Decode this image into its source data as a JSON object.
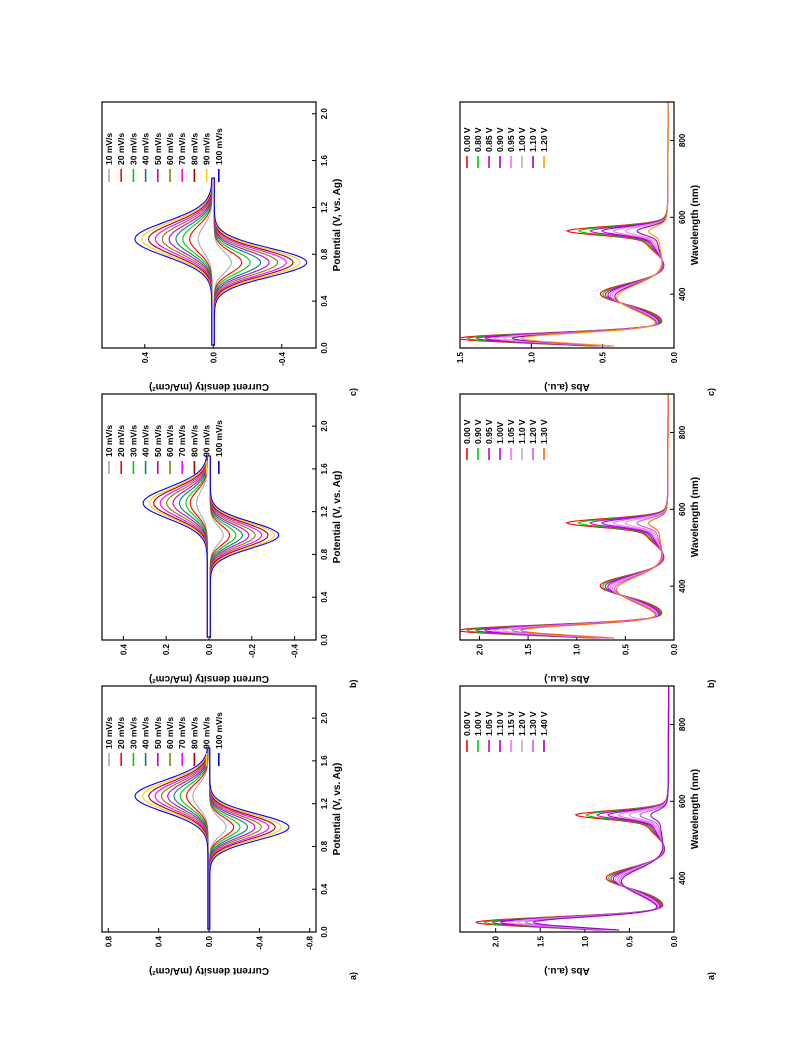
{
  "colors": {
    "palette": [
      "#a9a9a9",
      "#ff0000",
      "#00cc00",
      "#008080",
      "#cc00cc",
      "#808000",
      "#ff00ff",
      "#a00000",
      "#ffcc00",
      "#0000ff"
    ],
    "spectra_a": [
      "#ff0000",
      "#00cc00",
      "#cc00cc",
      "#aa00cc",
      "#ff66ff",
      "#d0a0d0",
      "#cc55ff",
      "#9900cc",
      "#228b22"
    ],
    "spectra_b": [
      "#ff0000",
      "#00cc00",
      "#cc00cc",
      "#aa00ff",
      "#ff66ff",
      "#d0a0d0",
      "#cc55ff",
      "#ff6600"
    ],
    "spectra_c": [
      "#ff0000",
      "#00cc00",
      "#cc00cc",
      "#aa00cc",
      "#ff66ff",
      "#d0a0d0",
      "#9900cc",
      "#ff9900"
    ]
  },
  "chart_data": [
    {
      "panel": "a)",
      "type": "line",
      "xlabel": "Potential (V, vs. Ag)",
      "ylabel": "Current density (mA/cm²)",
      "xlim": [
        0.0,
        2.3
      ],
      "ylim": [
        -0.85,
        0.85
      ],
      "xticks": [
        "0.0",
        "0.4",
        "0.8",
        "1.2",
        "1.6",
        "2.0"
      ],
      "yticks": [
        "0.8",
        "0.4",
        "0.0",
        "-0.4",
        "-0.8"
      ],
      "legend": [
        "10 mV/s",
        "20 mV/s",
        "30 mV/s",
        "40 mV/s",
        "50 mV/s",
        "60 mV/s",
        "70 mV/s",
        "80 mV/s",
        "90 mV/s",
        "100 mV/s"
      ],
      "legend_position": "top-right",
      "anodic_peak_potential": 1.27,
      "cathodic_peak_potential": 0.98,
      "anodic_peaks": [
        0.12,
        0.17,
        0.22,
        0.27,
        0.32,
        0.37,
        0.42,
        0.47,
        0.52,
        0.58
      ],
      "cathodic_peaks": [
        -0.13,
        -0.19,
        -0.24,
        -0.3,
        -0.36,
        -0.41,
        -0.47,
        -0.52,
        -0.57,
        -0.63
      ]
    },
    {
      "panel": "b)",
      "type": "line",
      "xlabel": "Potential (V, vs. Ag)",
      "ylabel": "Current density (mA/cm²)",
      "xlim": [
        0.0,
        2.3
      ],
      "ylim": [
        -0.5,
        0.5
      ],
      "xticks": [
        "0.0",
        "0.4",
        "0.8",
        "1.2",
        "1.6",
        "2.0"
      ],
      "yticks": [
        "0.4",
        "0.2",
        "0.0",
        "-0.2",
        "-0.4"
      ],
      "legend": [
        "10 mV/s",
        "20 mV/s",
        "30 mV/s",
        "40 mV/s",
        "50 mV/s",
        "60 mV/s",
        "70 mV/s",
        "80 mV/s",
        "90 mV/s",
        "100 mV/s"
      ],
      "legend_position": "top-right",
      "anodic_peak_potential": 1.28,
      "cathodic_peak_potential": 0.98,
      "anodic_peaks": [
        0.05,
        0.08,
        0.1,
        0.13,
        0.16,
        0.19,
        0.22,
        0.25,
        0.27,
        0.3
      ],
      "cathodic_peaks": [
        -0.06,
        -0.09,
        -0.12,
        -0.15,
        -0.18,
        -0.21,
        -0.24,
        -0.27,
        -0.3,
        -0.32
      ]
    },
    {
      "panel": "c)",
      "type": "line",
      "xlabel": "Potential (V, vs. Ag)",
      "ylabel": "Current density (mA/cm²)",
      "xlim": [
        0.0,
        2.1
      ],
      "ylim": [
        -0.6,
        0.65
      ],
      "xticks": [
        "0.0",
        "0.4",
        "0.8",
        "1.2",
        "1.6",
        "2.0"
      ],
      "yticks": [
        "0.4",
        "0.0",
        "-0.4"
      ],
      "legend": [
        "10 mV/s",
        "20 mV/s",
        "30 mV/s",
        "40 mV/s",
        "50 mV/s",
        "60 mV/s",
        "70 mV/s",
        "80 mV/s",
        "90 mV/s",
        "100 mV/s"
      ],
      "legend_position": "top-right",
      "anodic_peak_potential": 0.93,
      "cathodic_peak_potential": 0.73,
      "anodic_peaks": [
        0.08,
        0.13,
        0.17,
        0.21,
        0.25,
        0.29,
        0.33,
        0.37,
        0.41,
        0.45
      ],
      "cathodic_peaks": [
        -0.1,
        -0.16,
        -0.21,
        -0.27,
        -0.32,
        -0.37,
        -0.42,
        -0.46,
        -0.5,
        -0.54
      ]
    },
    {
      "panel": "a)",
      "type": "line",
      "xlabel": "Wavelength (nm)",
      "ylabel": "Abs (a.u.)",
      "xlim": [
        260,
        900
      ],
      "ylim": [
        0.0,
        2.4
      ],
      "xticks": [
        "400",
        "600",
        "800"
      ],
      "yticks": [
        "2.0",
        "1.5",
        "1.0",
        "0.5",
        "0.0"
      ],
      "legend": [
        "0.00 V",
        "1.00 V",
        "1.05 V",
        "1.10 V",
        "1.15 V",
        "1.20 V",
        "1.30 V",
        "1.40 V"
      ],
      "legend_position": "top-right"
    },
    {
      "panel": "b)",
      "type": "line",
      "xlabel": "Wavelength (nm)",
      "ylabel": "Abs (a.u.)",
      "xlim": [
        260,
        900
      ],
      "ylim": [
        0.0,
        2.2
      ],
      "xticks": [
        "400",
        "600",
        "800"
      ],
      "yticks": [
        "2.0",
        "1.5",
        "1.0",
        "0.5",
        "0.0"
      ],
      "legend": [
        "0.00 V",
        "0.90 V",
        "0.95 V",
        "1.00V",
        "1.05 V",
        "1.10 V",
        "1.20 V",
        "1.30 V"
      ],
      "legend_position": "top-right"
    },
    {
      "panel": "c)",
      "type": "line",
      "xlabel": "Wavelength (nm)",
      "ylabel": "Abs (a.u.)",
      "xlim": [
        260,
        900
      ],
      "ylim": [
        0.0,
        1.5
      ],
      "xticks": [
        "400",
        "600",
        "800"
      ],
      "yticks": [
        "1.5",
        "1.0",
        "0.5",
        "0.0"
      ],
      "legend": [
        "0.00 V",
        "0.80 V",
        "0.85 V",
        "0.90 V",
        "0.95 V",
        "1.00 V",
        "1.10 V",
        "1.20 V"
      ],
      "legend_position": "top-right"
    }
  ]
}
